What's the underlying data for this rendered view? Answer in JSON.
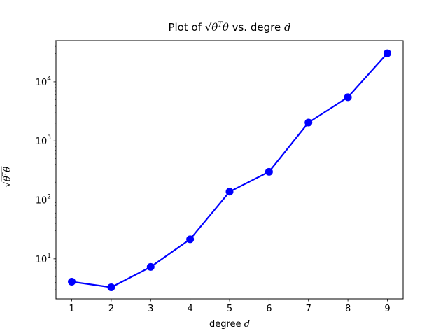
{
  "chart_data": {
    "type": "line",
    "title": {
      "prefix": "Plot of ",
      "radical": "√",
      "math_under": "θ",
      "math_sup": "T",
      "math_after": "θ",
      "middle": " vs. degre ",
      "var": "d"
    },
    "xlabel": {
      "text": "degree ",
      "var": "d"
    },
    "ylabel": {
      "radical": "√",
      "math_under": "θ",
      "math_sup": "T",
      "math_after": "θ"
    },
    "x": [
      1,
      2,
      3,
      4,
      5,
      6,
      7,
      8,
      9
    ],
    "series": [
      {
        "values": [
          4.1,
          3.3,
          7.3,
          21.5,
          138,
          300,
          2050,
          5500,
          30500
        ],
        "color": "#0000ff",
        "marker": "circle"
      }
    ],
    "xlim": [
      0.6,
      9.4
    ],
    "ylim": [
      2.1,
      50000
    ],
    "yscale": "log",
    "xticks": [
      "1",
      "2",
      "3",
      "4",
      "5",
      "6",
      "7",
      "8",
      "9"
    ],
    "yticks": [
      {
        "value": 10,
        "base": "10",
        "exp": "1"
      },
      {
        "value": 100,
        "base": "10",
        "exp": "2"
      },
      {
        "value": 1000,
        "base": "10",
        "exp": "3"
      },
      {
        "value": 10000,
        "base": "10",
        "exp": "4"
      }
    ],
    "grid": false,
    "legend": "none"
  }
}
